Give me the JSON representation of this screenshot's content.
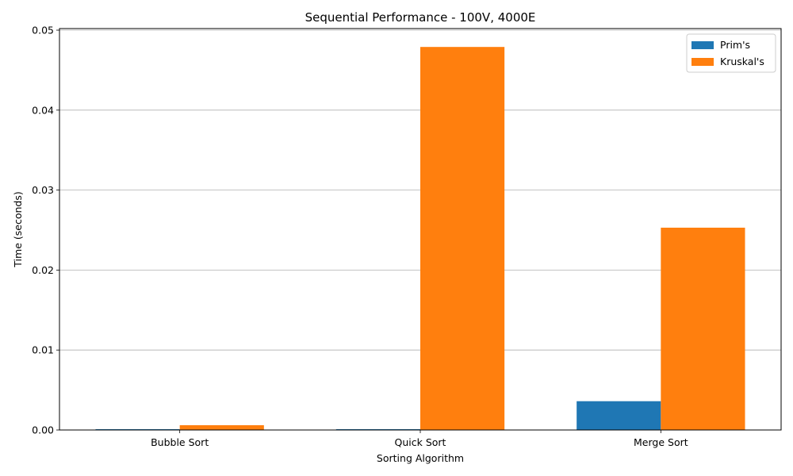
{
  "chart_data": {
    "type": "bar",
    "title": "Sequential Performance - 100V, 4000E",
    "xlabel": "Sorting Algorithm",
    "ylabel": "Time (seconds)",
    "categories": [
      "Bubble Sort",
      "Quick Sort",
      "Merge Sort"
    ],
    "series": [
      {
        "name": "Prim's",
        "color": "#1f77b4",
        "values": [
          5e-05,
          5e-05,
          0.0036
        ]
      },
      {
        "name": "Kruskal's",
        "color": "#ff7f0e",
        "values": [
          0.0006,
          0.0479,
          0.0253
        ]
      }
    ],
    "ylim": [
      0,
      0.0502
    ],
    "yticks": [
      "0.00",
      "0.01",
      "0.02",
      "0.03",
      "0.04",
      "0.05"
    ],
    "ytick_values": [
      0,
      0.01,
      0.02,
      0.03,
      0.04,
      0.05
    ],
    "grid": "y",
    "legend_position": "top-right"
  }
}
